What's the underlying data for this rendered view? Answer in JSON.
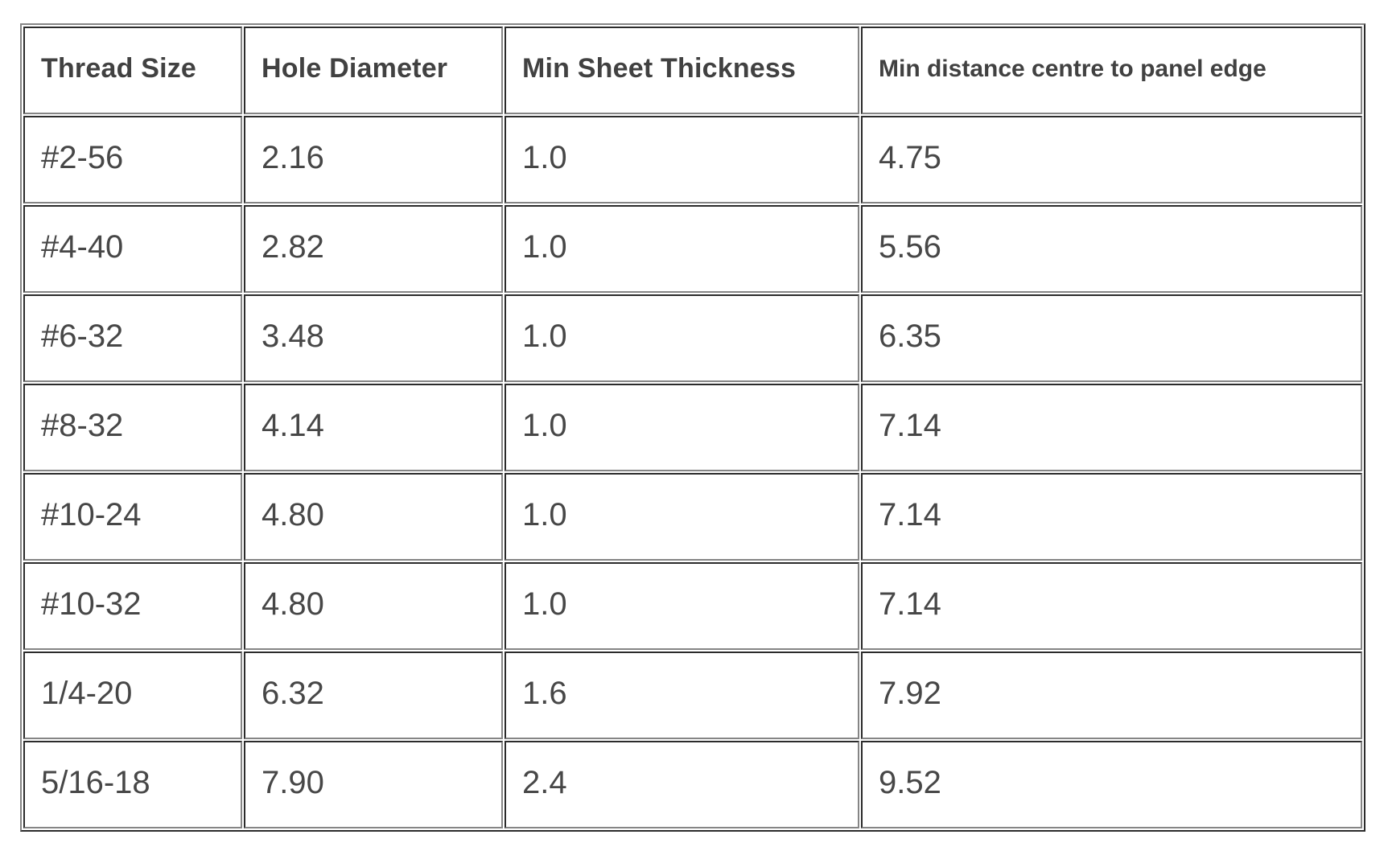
{
  "chart_data": {
    "type": "table",
    "title": "",
    "columns": [
      "Thread Size",
      "Hole Diameter",
      "Min Sheet Thickness",
      "Min distance centre to panel edge"
    ],
    "rows": [
      [
        "#2-56",
        "2.16",
        "1.0",
        "4.75"
      ],
      [
        "#4-40",
        "2.82",
        "1.0",
        "5.56"
      ],
      [
        "#6-32",
        "3.48",
        "1.0",
        "6.35"
      ],
      [
        "#8-32",
        "4.14",
        "1.0",
        "7.14"
      ],
      [
        "#10-24",
        "4.80",
        "1.0",
        "7.14"
      ],
      [
        "#10-32",
        "4.80",
        "1.0",
        "7.14"
      ],
      [
        "1/4-20",
        "6.32",
        "1.6",
        "7.92"
      ],
      [
        "5/16-18",
        "7.90",
        "2.4",
        "9.52"
      ]
    ]
  },
  "colors": {
    "background": "#ffffff",
    "text": "#474747",
    "header_text": "#414141",
    "border_dark": "#2b2b2b",
    "border_light": "#858585"
  }
}
